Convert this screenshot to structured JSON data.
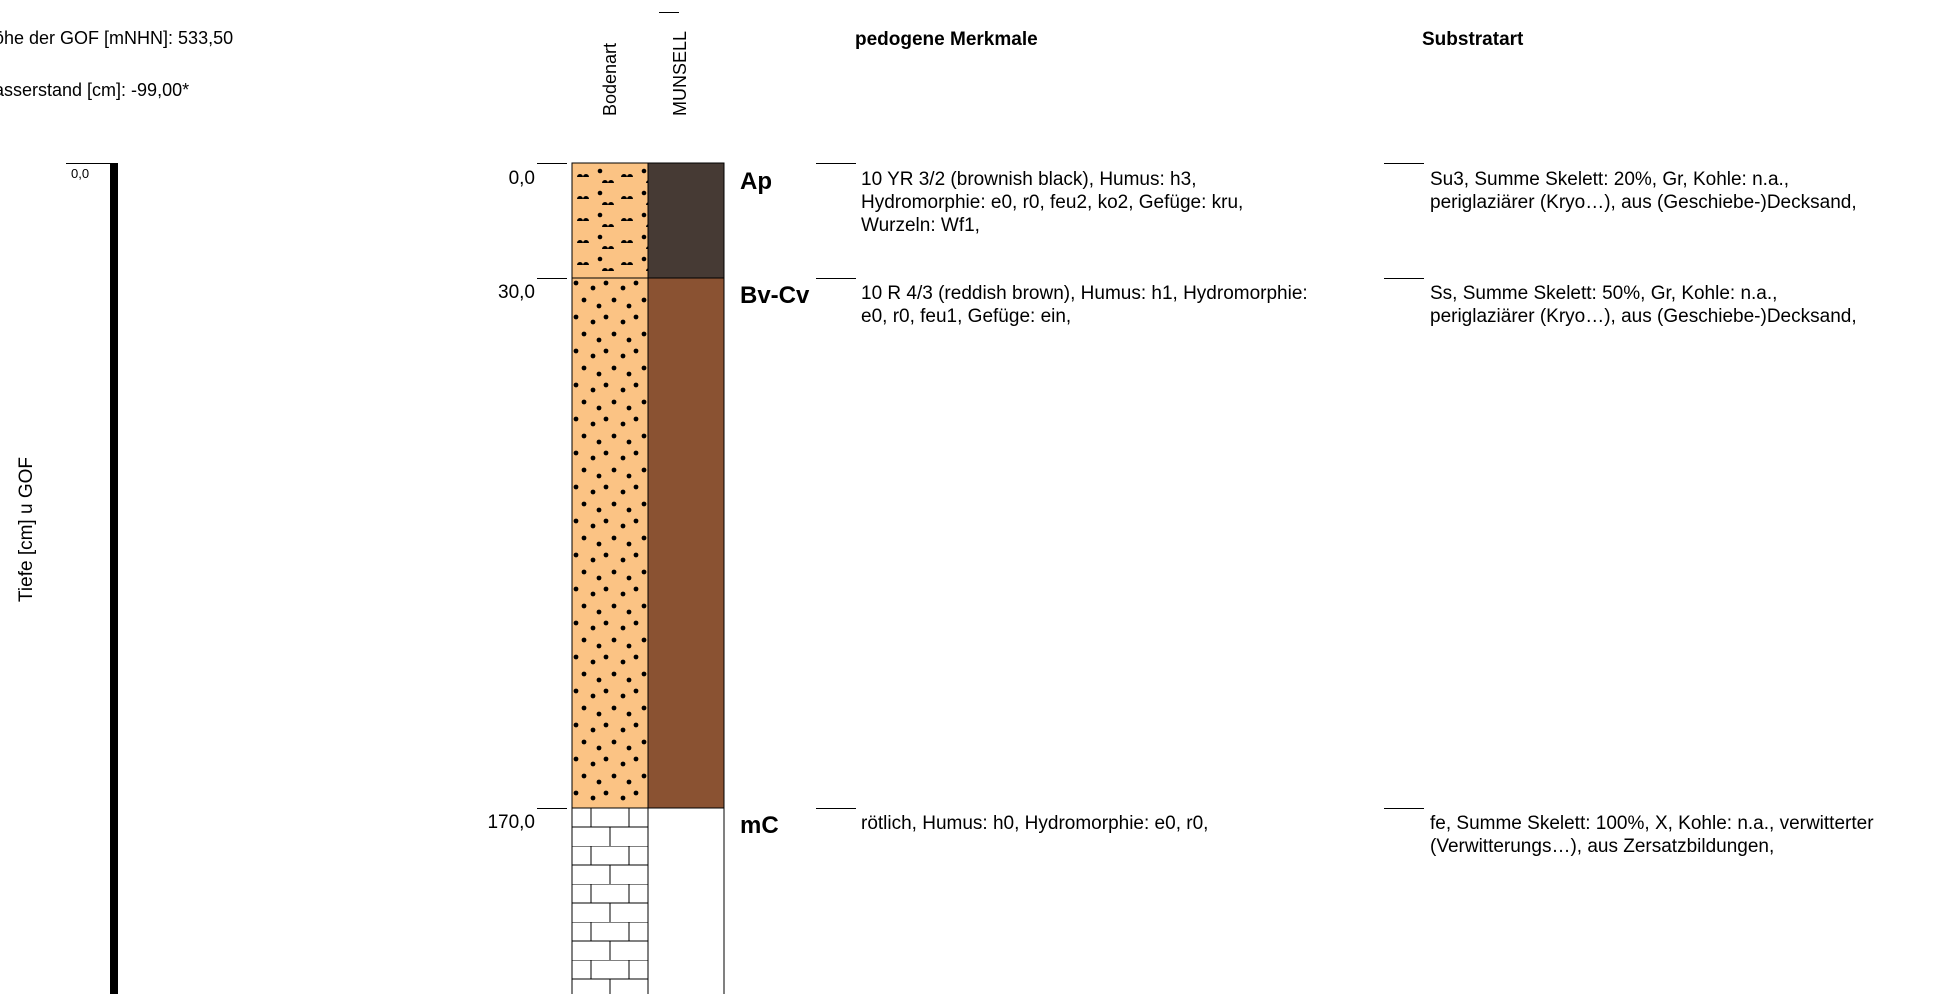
{
  "meta": {
    "gof_height": "öhe der GOF [mNHN]: 533,50",
    "water_level": "asserstand [cm]: -99,00*"
  },
  "columns": {
    "soil_type": "Bodenart",
    "munsell": "MUNSELL",
    "pedogenic": "pedogene Merkmale",
    "substrate": "Substratart"
  },
  "axis": {
    "label": "Tiefe [cm] u GOF",
    "start": "0,0"
  },
  "horizons": [
    {
      "depth": "0,0",
      "label": "Ap",
      "munsell_color": "#463a34",
      "pattern": "loamy-sand",
      "pedogenic": [
        "10 YR 3/2 (brownish black), Humus: h3,",
        "Hydromorphie: e0, r0, feu2, ko2, Gefüge: kru,",
        "Wurzeln: Wf1,"
      ],
      "substrate": [
        "Su3, Summe Skelett: 20%, Gr, Kohle: n.a.,",
        "periglaziärer (Kryo…), aus (Geschiebe-)Decksand,"
      ]
    },
    {
      "depth": "30,0",
      "label": "Bv-Cv",
      "munsell_color": "#8a5232",
      "pattern": "sand",
      "pedogenic": [
        "10 R 4/3 (reddish brown), Humus: h1, Hydromorphie:",
        "e0, r0, feu1, Gefüge: ein,"
      ],
      "substrate": [
        "Ss, Summe Skelett: 50%, Gr, Kohle: n.a.,",
        "periglaziärer (Kryo…), aus (Geschiebe-)Decksand,"
      ]
    },
    {
      "depth": "170,0",
      "label": "mC",
      "munsell_color": "#ffffff",
      "pattern": "rock",
      "pedogenic": [
        "rötlich, Humus: h0, Hydromorphie: e0, r0,"
      ],
      "substrate": [
        "fe, Summe Skelett: 100%, X, Kohle: n.a., verwitterter",
        "(Verwitterungs…), aus Zersatzbildungen,"
      ]
    }
  ],
  "colors": {
    "sand_fill": "#fbc384",
    "ap_color": "#463a34",
    "bv_color": "#8a5232"
  }
}
